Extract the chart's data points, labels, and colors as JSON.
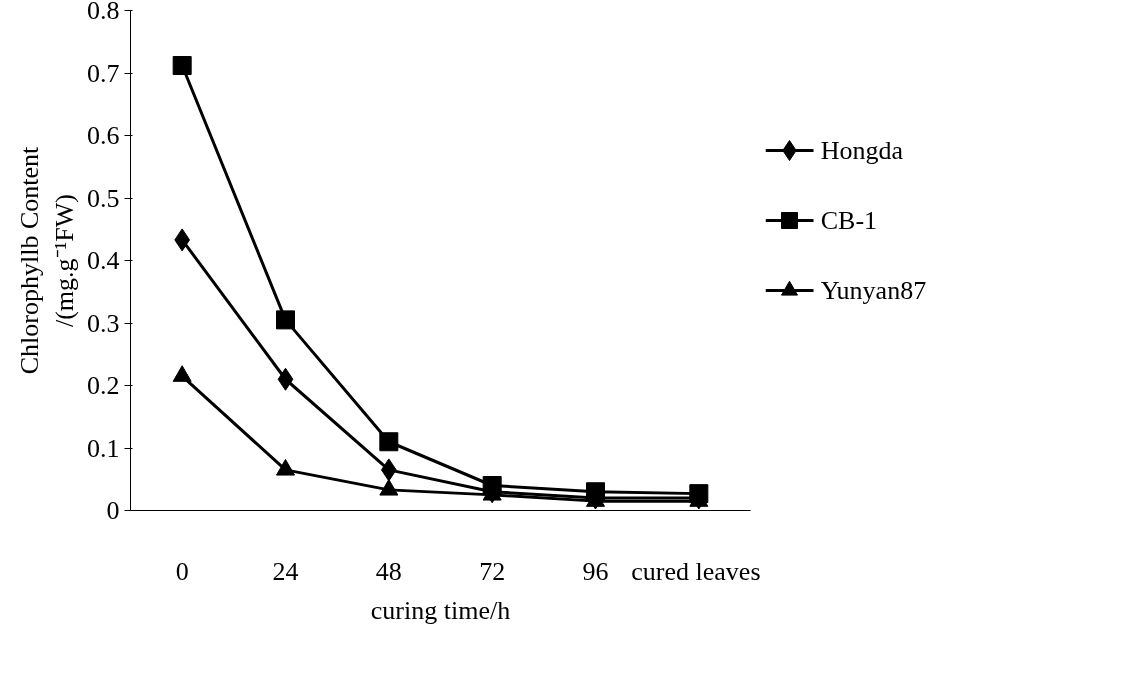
{
  "chart_data": {
    "type": "line",
    "xlabel": "curing time/h",
    "ylabel": "Chlorophyllb Content\n/(mg.g⁻¹FW)",
    "categories": [
      "0",
      "24",
      "48",
      "72",
      "96",
      "cured leaves"
    ],
    "ylim": [
      0,
      0.8
    ],
    "yticks": [
      {
        "value": 0,
        "label": "0"
      },
      0.1,
      0.2,
      0.3,
      0.4,
      0.5,
      0.6,
      0.7,
      0.8
    ],
    "grid": false,
    "legend": "right",
    "series": [
      {
        "name": "Hongda",
        "color": "#000000",
        "marker": "diamond",
        "values": [
          0.433,
          0.21,
          0.065,
          0.03,
          0.02,
          0.02
        ]
      },
      {
        "name": "CB-1",
        "color": "#000000",
        "marker": "square",
        "values": [
          0.712,
          0.305,
          0.11,
          0.04,
          0.03,
          0.027
        ]
      },
      {
        "name": "Yunyan87",
        "color": "#000000",
        "marker": "triangle",
        "values": [
          0.215,
          0.065,
          0.033,
          0.025,
          0.015,
          0.015
        ]
      }
    ]
  }
}
